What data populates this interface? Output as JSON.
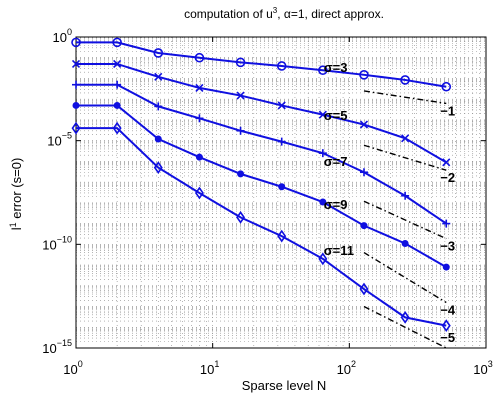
{
  "chart_data": {
    "type": "line",
    "title": {
      "base": "computation of u",
      "sup": "3",
      "rest": ",   α=1,   direct approx."
    },
    "xlabel": "Sparse level N",
    "ylabel": {
      "base": "l",
      "sup": "1",
      "rest": " error (s=0)"
    },
    "x_scale": "log",
    "y_scale": "log",
    "xlim": [
      1,
      1000
    ],
    "ylim": [
      1e-15,
      1
    ],
    "grid": true,
    "x_ticks": [
      {
        "value": 1,
        "base": "10",
        "exp": "0"
      },
      {
        "value": 10,
        "base": "10",
        "exp": "1"
      },
      {
        "value": 100,
        "base": "10",
        "exp": "2"
      },
      {
        "value": 1000,
        "base": "10",
        "exp": "3"
      }
    ],
    "y_ticks": [
      {
        "value": 1,
        "base": "10",
        "exp": "0"
      },
      {
        "value": 1e-05,
        "base": "10",
        "exp": "−5"
      },
      {
        "value": 1e-10,
        "base": "10",
        "exp": "−10"
      },
      {
        "value": 1e-15,
        "base": "10",
        "exp": "−15"
      }
    ],
    "series": [
      {
        "label": "σ=3",
        "marker": "o",
        "x": [
          1,
          2,
          4,
          8,
          16,
          32,
          64,
          128,
          256,
          512
        ],
        "y": [
          0.55,
          0.55,
          0.17,
          0.1,
          0.06,
          0.04,
          0.025,
          0.015,
          0.0085,
          0.004
        ],
        "label_at": [
          65,
          0.02
        ]
      },
      {
        "label": "σ=5",
        "marker": "x",
        "x": [
          1,
          2,
          4,
          8,
          16,
          32,
          64,
          128,
          256,
          512
        ],
        "y": [
          0.05,
          0.05,
          0.012,
          0.0035,
          0.0015,
          0.0005,
          0.00018,
          6e-05,
          1.3e-05,
          9e-07
        ],
        "label_at": [
          65,
          0.0001
        ]
      },
      {
        "label": "σ=7",
        "marker": "+",
        "x": [
          1,
          2,
          4,
          8,
          16,
          32,
          64,
          128,
          256,
          512
        ],
        "y": [
          0.005,
          0.005,
          0.00045,
          0.00012,
          3e-05,
          9e-06,
          2.5e-06,
          3e-07,
          2.2e-08,
          1e-09
        ],
        "label_at": [
          65,
          6e-07
        ]
      },
      {
        "label": "σ=9",
        "marker": ".",
        "x": [
          1,
          2,
          4,
          8,
          16,
          32,
          64,
          128,
          256,
          512
        ],
        "y": [
          0.0005,
          0.0005,
          1.2e-05,
          1.6e-06,
          2.5e-07,
          6e-08,
          1.1e-08,
          8e-10,
          1.1e-10,
          8e-12
        ],
        "label_at": [
          65,
          5e-09
        ]
      },
      {
        "label": "σ=11",
        "marker": "d",
        "x": [
          1,
          2,
          4,
          8,
          16,
          32,
          64,
          128,
          256,
          512
        ],
        "y": [
          4e-05,
          4e-05,
          5e-07,
          3e-08,
          2e-09,
          2.5e-10,
          2e-11,
          7e-13,
          3e-14,
          1.2e-14
        ],
        "label_at": [
          65,
          3e-11
        ]
      }
    ],
    "reference_lines": [
      {
        "label": "−1",
        "x": [
          128,
          512
        ],
        "y": [
          0.0025,
          0.000625
        ]
      },
      {
        "label": "−2",
        "x": [
          128,
          512
        ],
        "y": [
          6e-06,
          3.75e-07
        ]
      },
      {
        "label": "−3",
        "x": [
          128,
          512
        ],
        "y": [
          1.2e-08,
          1.875e-10
        ]
      },
      {
        "label": "−4",
        "x": [
          128,
          512
        ],
        "y": [
          4e-11,
          1.5625e-13
        ]
      },
      {
        "label": "−5",
        "x": [
          128,
          512
        ],
        "y": [
          1e-13,
          9.7656e-17
        ]
      }
    ],
    "colors": {
      "series": "#1010e0",
      "reference": "#000000",
      "grid": "#888888"
    }
  }
}
